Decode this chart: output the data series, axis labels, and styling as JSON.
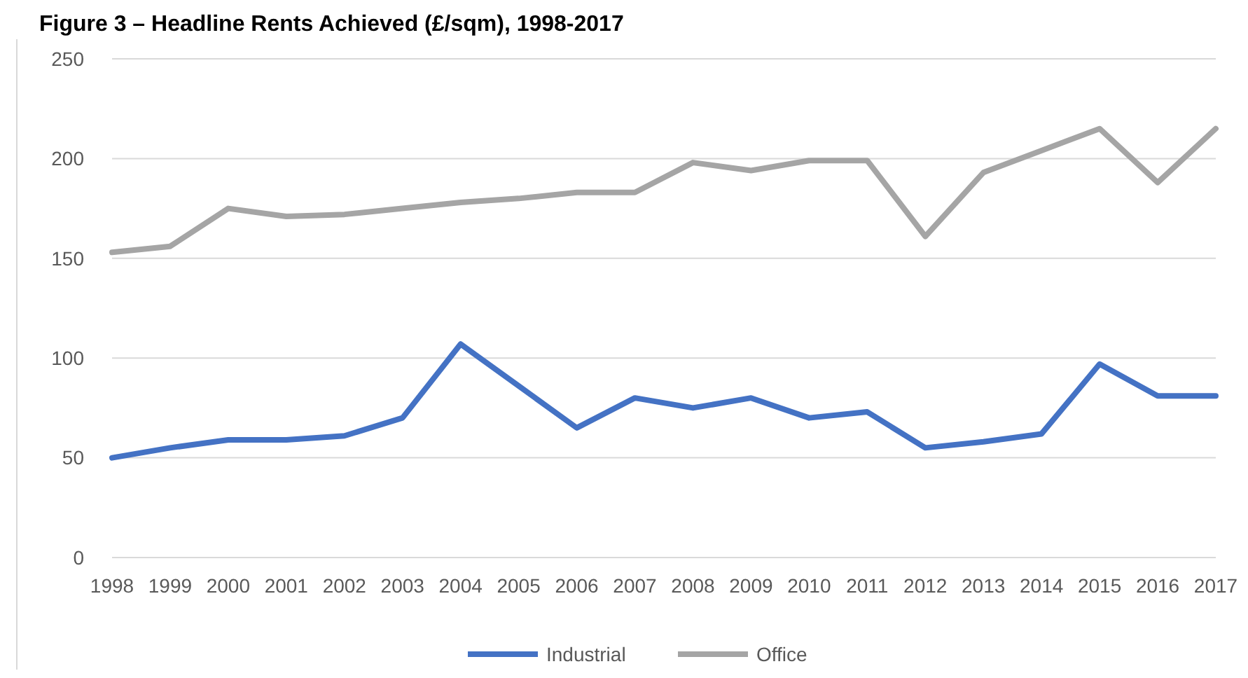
{
  "chart_data": {
    "type": "line",
    "title": "Figure 3 – Headline Rents Achieved (£/sqm), 1998-2017",
    "categories": [
      "1998",
      "1999",
      "2000",
      "2001",
      "2002",
      "2003",
      "2004",
      "2005",
      "2006",
      "2007",
      "2008",
      "2009",
      "2010",
      "2011",
      "2012",
      "2013",
      "2014",
      "2015",
      "2016",
      "2017"
    ],
    "series": [
      {
        "name": "Industrial",
        "color": "#4472c4",
        "values": [
          50,
          55,
          59,
          59,
          61,
          70,
          107,
          86,
          65,
          80,
          75,
          80,
          70,
          73,
          55,
          58,
          62,
          97,
          81,
          81
        ]
      },
      {
        "name": "Office",
        "color": "#a5a5a5",
        "values": [
          153,
          156,
          175,
          171,
          172,
          175,
          178,
          180,
          183,
          183,
          198,
          194,
          199,
          199,
          161,
          193,
          204,
          215,
          188,
          215
        ]
      }
    ],
    "ylim": [
      0,
      250
    ],
    "yticks": [
      0,
      50,
      100,
      150,
      200,
      250
    ],
    "grid": "y",
    "legend": "bottom",
    "marker": "none",
    "line_style": "solid"
  }
}
